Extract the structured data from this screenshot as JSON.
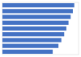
{
  "chart_data": {
    "type": "bar",
    "orientation": "horizontal",
    "values": [
      5.0,
      4.9,
      4.75,
      4.6,
      4.45,
      4.3,
      4.1,
      3.9,
      3.5
    ],
    "color": "#4472c4",
    "xlim": [
      0,
      5.3
    ],
    "grid": false,
    "tick_labels": false
  }
}
